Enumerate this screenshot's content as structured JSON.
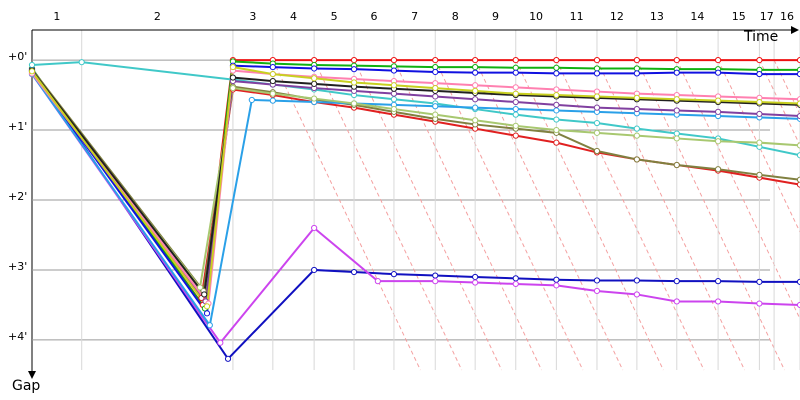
{
  "chart_data": {
    "type": "line",
    "x_label": "Time",
    "y_label": "Gap",
    "categories": [
      "1",
      "2",
      "3",
      "4",
      "5",
      "6",
      "7",
      "8",
      "9",
      "10",
      "11",
      "12",
      "13",
      "14",
      "15",
      "17",
      "16"
    ],
    "lap_edges": [
      0,
      0.71,
      2.87,
      3.44,
      4.03,
      4.6,
      5.17,
      5.76,
      6.33,
      6.91,
      7.49,
      8.07,
      8.64,
      9.21,
      9.8,
      10.39,
      10.6,
      10.97
    ],
    "xlim": [
      0,
      10.97
    ],
    "ylim": [
      -0.43,
      4.43
    ],
    "yticks": [
      {
        "value": 0,
        "label": "+0'"
      },
      {
        "value": 1,
        "label": "+1'"
      },
      {
        "value": 2,
        "label": "+2'"
      },
      {
        "value": 3,
        "label": "+3'"
      },
      {
        "value": 4,
        "label": "+4'"
      }
    ],
    "grid": true,
    "series": [
      {
        "color": "#ee1111",
        "x": [
          0,
          2.44,
          2.87,
          3.44,
          4.03,
          4.6,
          5.17,
          5.76,
          6.33,
          6.91,
          7.49,
          8.07,
          8.64,
          9.21,
          9.8,
          10.39,
          10.97
        ],
        "values": [
          0.14,
          3.5,
          0,
          0,
          0,
          0,
          0,
          0,
          0,
          0,
          0,
          0,
          0,
          0,
          0,
          0,
          0
        ]
      },
      {
        "color": "#10b010",
        "x": [
          0,
          2.47,
          2.87,
          3.44,
          4.03,
          4.6,
          5.17,
          5.76,
          6.33,
          6.91,
          7.49,
          8.07,
          8.64,
          9.21,
          9.8,
          10.39,
          10.97
        ],
        "values": [
          0.12,
          3.55,
          0.02,
          0.05,
          0.07,
          0.08,
          0.09,
          0.1,
          0.1,
          0.11,
          0.11,
          0.12,
          0.12,
          0.13,
          0.13,
          0.14,
          0.14
        ]
      },
      {
        "color": "#1010e0",
        "x": [
          0,
          2.5,
          2.87,
          3.44,
          4.03,
          4.6,
          5.17,
          5.76,
          6.33,
          6.91,
          7.49,
          8.07,
          8.64,
          9.21,
          9.8,
          10.39,
          10.97
        ],
        "values": [
          0.15,
          3.62,
          0.08,
          0.1,
          0.12,
          0.13,
          0.15,
          0.17,
          0.18,
          0.18,
          0.19,
          0.19,
          0.19,
          0.18,
          0.18,
          0.2,
          0.2
        ]
      },
      {
        "color": "#e02020",
        "x": [
          0,
          2.42,
          2.87,
          3.44,
          4.03,
          4.6,
          5.17,
          5.76,
          6.33,
          6.91,
          7.49,
          8.07,
          8.64,
          9.21,
          9.8,
          10.39,
          10.97
        ],
        "values": [
          0.16,
          3.4,
          0.42,
          0.5,
          0.6,
          0.68,
          0.78,
          0.88,
          0.98,
          1.08,
          1.18,
          1.32,
          1.42,
          1.5,
          1.58,
          1.68,
          1.78
        ]
      },
      {
        "color": "#808040",
        "x": [
          0,
          2.45,
          2.87,
          3.44,
          4.03,
          4.6,
          5.17,
          5.76,
          6.33,
          6.91,
          7.49,
          8.07,
          8.64,
          9.21,
          9.8,
          10.39,
          10.97
        ],
        "values": [
          0.13,
          3.3,
          0.38,
          0.46,
          0.56,
          0.64,
          0.74,
          0.84,
          0.92,
          0.98,
          1.04,
          1.3,
          1.42,
          1.5,
          1.56,
          1.64,
          1.71
        ]
      },
      {
        "color": "#1010c0",
        "x": [
          0,
          2.8,
          4.03,
          4.6,
          5.17,
          5.76,
          6.33,
          6.91,
          7.49,
          8.07,
          8.64,
          9.21,
          9.8,
          10.39,
          10.97
        ],
        "values": [
          0.14,
          4.27,
          3.0,
          3.03,
          3.06,
          3.08,
          3.1,
          3.12,
          3.14,
          3.15,
          3.15,
          3.16,
          3.16,
          3.17,
          3.17
        ]
      },
      {
        "color": "#cc44ee",
        "x": [
          0,
          2.69,
          4.03,
          4.94,
          5.76,
          6.33,
          6.91,
          7.49,
          8.07,
          8.64,
          9.21,
          9.8,
          10.39,
          10.97
        ],
        "values": [
          0.2,
          4.04,
          2.4,
          3.16,
          3.16,
          3.18,
          3.2,
          3.22,
          3.3,
          3.35,
          3.45,
          3.45,
          3.48,
          3.5
        ]
      },
      {
        "color": "#40c8c8",
        "x": [
          0,
          0.71,
          2.87,
          3.44,
          4.03,
          4.6,
          5.17,
          5.76,
          6.33,
          6.91,
          7.49,
          8.07,
          8.64,
          9.21,
          9.8,
          10.39,
          10.97
        ],
        "values": [
          0.07,
          0.03,
          0.28,
          0.35,
          0.42,
          0.5,
          0.56,
          0.62,
          0.7,
          0.78,
          0.85,
          0.9,
          0.98,
          1.05,
          1.12,
          1.24,
          1.36
        ]
      },
      {
        "color": "#2aa0e8",
        "x": [
          0,
          2.54,
          3.14,
          3.44,
          4.03,
          4.6,
          5.17,
          5.76,
          6.33,
          6.91,
          7.49,
          8.07,
          8.64,
          9.21,
          9.8,
          10.39,
          10.97
        ],
        "values": [
          0.2,
          3.79,
          0.57,
          0.58,
          0.6,
          0.62,
          0.64,
          0.66,
          0.68,
          0.7,
          0.72,
          0.74,
          0.76,
          0.78,
          0.8,
          0.82,
          0.84
        ]
      },
      {
        "color": "#a8c870",
        "x": [
          0,
          2.4,
          2.87,
          3.44,
          4.03,
          4.6,
          5.17,
          5.76,
          6.33,
          6.91,
          7.49,
          8.07,
          8.64,
          9.21,
          9.8,
          10.39,
          10.97
        ],
        "values": [
          0.18,
          3.25,
          0.4,
          0.48,
          0.55,
          0.62,
          0.7,
          0.78,
          0.86,
          0.94,
          1.0,
          1.04,
          1.08,
          1.12,
          1.16,
          1.18,
          1.22
        ]
      },
      {
        "color": "#8040a0",
        "x": [
          0,
          2.48,
          2.87,
          3.44,
          4.03,
          4.6,
          5.17,
          5.76,
          6.33,
          6.91,
          7.49,
          8.07,
          8.64,
          9.21,
          9.8,
          10.39,
          10.97
        ],
        "values": [
          0.17,
          3.45,
          0.3,
          0.35,
          0.4,
          0.44,
          0.48,
          0.52,
          0.56,
          0.6,
          0.64,
          0.68,
          0.7,
          0.72,
          0.74,
          0.77,
          0.8
        ]
      },
      {
        "color": "#202020",
        "x": [
          0,
          2.46,
          2.87,
          3.44,
          4.03,
          4.6,
          5.17,
          5.76,
          6.33,
          6.91,
          7.49,
          8.07,
          8.64,
          9.21,
          9.8,
          10.39,
          10.97
        ],
        "values": [
          0.15,
          3.35,
          0.25,
          0.3,
          0.34,
          0.38,
          0.41,
          0.44,
          0.47,
          0.5,
          0.52,
          0.54,
          0.56,
          0.58,
          0.6,
          0.62,
          0.64
        ]
      },
      {
        "color": "#ff80b0",
        "x": [
          0,
          2.52,
          2.87,
          3.44,
          4.03,
          4.6,
          5.17,
          5.76,
          6.33,
          6.91,
          7.49,
          8.07,
          8.64,
          9.21,
          9.8,
          10.39,
          10.97
        ],
        "values": [
          0.19,
          3.48,
          0.15,
          0.2,
          0.24,
          0.27,
          0.3,
          0.33,
          0.36,
          0.39,
          0.42,
          0.45,
          0.48,
          0.5,
          0.52,
          0.54,
          0.56
        ]
      },
      {
        "color": "#c8d020",
        "x": [
          0,
          2.5,
          2.87,
          3.44,
          4.03,
          4.6,
          5.17,
          5.76,
          6.33,
          6.91,
          7.49,
          8.07,
          8.64,
          9.21,
          9.8,
          10.39,
          10.97
        ],
        "values": [
          0.16,
          3.52,
          0.1,
          0.2,
          0.26,
          0.32,
          0.36,
          0.4,
          0.44,
          0.48,
          0.5,
          0.52,
          0.54,
          0.56,
          0.58,
          0.6,
          0.62
        ]
      }
    ]
  }
}
